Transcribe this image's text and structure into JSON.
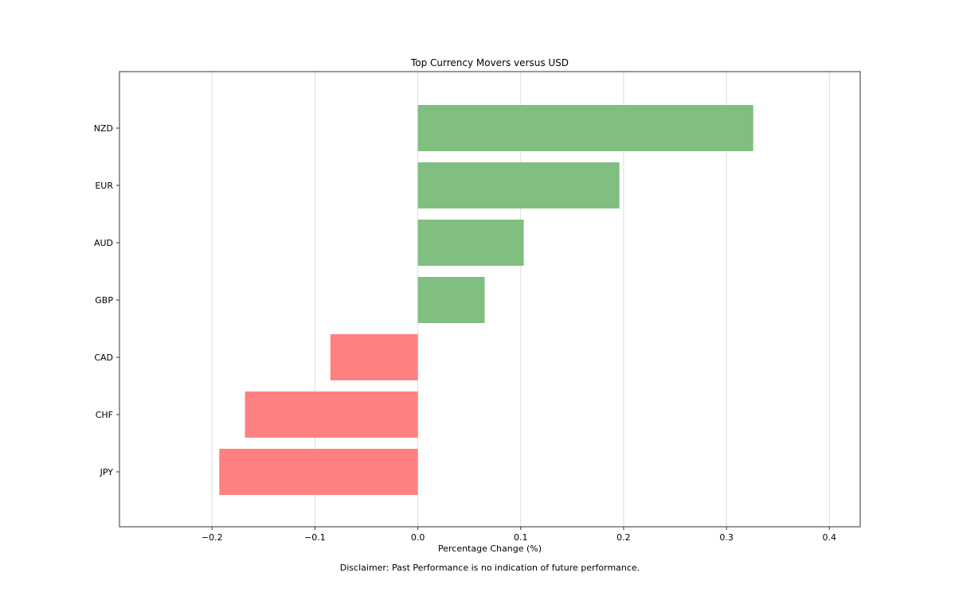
{
  "chart_data": {
    "type": "bar",
    "orientation": "horizontal",
    "title": "Top Currency Movers versus USD",
    "xlabel": "Percentage Change (%)",
    "ylabel": "",
    "footnote": "Disclaimer: Past Performance is no indication of future performance.",
    "categories": [
      "NZD",
      "EUR",
      "AUD",
      "GBP",
      "CAD",
      "CHF",
      "JPY"
    ],
    "values": [
      0.326,
      0.196,
      0.103,
      0.065,
      -0.085,
      -0.168,
      -0.193
    ],
    "xlim": [
      -0.29,
      0.43
    ],
    "xticks": [
      -0.2,
      -0.1,
      0.0,
      0.1,
      0.2,
      0.3,
      0.4
    ],
    "xtick_labels": [
      "−0.2",
      "−0.1",
      "0.0",
      "0.1",
      "0.2",
      "0.3",
      "0.4"
    ],
    "grid": "vertical",
    "colors": {
      "positive": "#80bf80",
      "negative": "#ff8080",
      "grid": "#dddddd",
      "axis": "#333333"
    }
  }
}
